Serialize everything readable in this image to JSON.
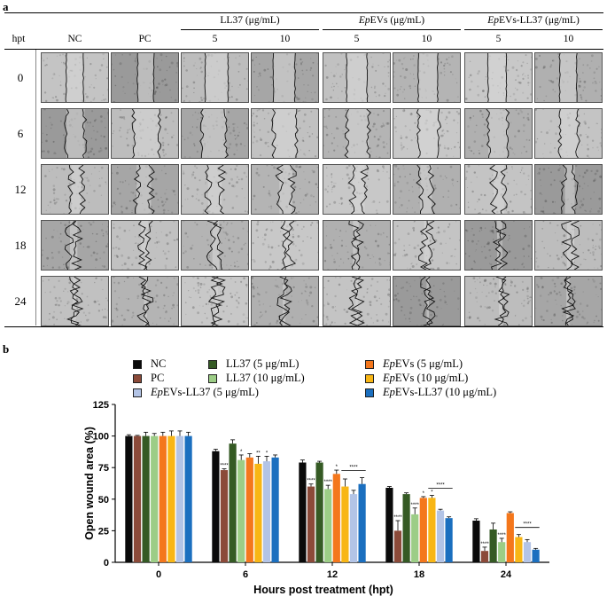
{
  "panel_a": {
    "label": "a",
    "hpt_header": "hpt",
    "col_headers": [
      "NC",
      "PC"
    ],
    "groups": [
      {
        "label": "LL37 (μg/mL)",
        "prefix": "",
        "suffix": "LL37 (μg/mL)",
        "subs": [
          "5",
          "10"
        ]
      },
      {
        "label": "EpEVs (μg/mL)",
        "prefix": "Ep",
        "suffix": "EVs (μg/mL)",
        "subs": [
          "5",
          "10"
        ]
      },
      {
        "label": "EpEVs-LL37 (μg/mL)",
        "prefix": "Ep",
        "suffix": "EVs-LL37 (μg/mL)",
        "subs": [
          "5",
          "10"
        ]
      }
    ],
    "rows": [
      "0",
      "6",
      "12",
      "18",
      "24"
    ]
  },
  "panel_b": {
    "label": "b"
  },
  "colors": {
    "NC": "#0a0a0a",
    "PC": "#8b4a39",
    "LL37_5": "#355a24",
    "LL37_10": "#9ccd86",
    "EpEVs_5": "#f4771c",
    "EpEVs_10": "#f8b615",
    "EpEVsLL37_5": "#b3c4e6",
    "EpEVsLL37_10": "#1b6fbf"
  },
  "legend": [
    {
      "key": "NC",
      "prefix": "",
      "text": "NC"
    },
    {
      "key": "PC",
      "prefix": "",
      "text": "PC"
    },
    {
      "key": "EpEVsLL37_5",
      "prefix": "Ep",
      "text": "EVs-LL37 (5 μg/mL)"
    },
    {
      "key": "LL37_5",
      "prefix": "",
      "text": "LL37 (5 μg/mL)"
    },
    {
      "key": "LL37_10",
      "prefix": "",
      "text": "LL37 (10 μg/mL)"
    },
    {
      "key": "EpEVs_5",
      "prefix": "Ep",
      "text": "EVs (5 μg/mL)"
    },
    {
      "key": "EpEVs_10",
      "prefix": "Ep",
      "text": "EVs (10 μg/mL)"
    },
    {
      "key": "EpEVsLL37_10",
      "prefix": "Ep",
      "text": "EVs-LL37 (10 μg/mL)"
    }
  ],
  "chart_data": {
    "type": "bar",
    "xlabel": "Hours post treatment (hpt)",
    "ylabel": "Open wound area (%)",
    "categories": [
      "0",
      "6",
      "12",
      "18",
      "24"
    ],
    "ylim": [
      0,
      125
    ],
    "yticks": [
      0,
      25,
      50,
      75,
      100,
      125
    ],
    "series": [
      {
        "name": "NC",
        "key": "NC",
        "values": [
          100,
          88,
          79,
          59,
          33
        ],
        "errors": [
          1,
          1.5,
          2,
          1,
          1.5
        ],
        "sig": [
          "",
          "",
          "",
          "",
          ""
        ]
      },
      {
        "name": "PC",
        "key": "PC",
        "values": [
          100,
          73,
          60,
          25,
          9
        ],
        "errors": [
          0.5,
          1,
          2,
          8,
          3
        ],
        "sig": [
          "",
          "****",
          "****",
          "****",
          "****"
        ]
      },
      {
        "name": "LL37 (5 μg/mL)",
        "key": "LL37_5",
        "values": [
          100,
          94,
          79,
          54,
          26
        ],
        "errors": [
          3,
          3,
          1,
          1,
          5
        ],
        "sig": [
          "",
          "",
          "",
          "",
          ""
        ]
      },
      {
        "name": "LL37 (10 μg/mL)",
        "key": "LL37_10",
        "values": [
          100,
          81,
          58,
          38,
          16
        ],
        "errors": [
          2,
          4,
          3,
          5,
          3
        ],
        "sig": [
          "",
          "*",
          "****",
          "****",
          "****"
        ]
      },
      {
        "name": "EpEVs (5 μg/mL)",
        "key": "EpEVs_5",
        "values": [
          100,
          83,
          70,
          51,
          39
        ],
        "errors": [
          3,
          3,
          3,
          1,
          1
        ],
        "sig": [
          "",
          "",
          "*",
          "*",
          ""
        ]
      },
      {
        "name": "EpEVs (10 μg/mL)",
        "key": "EpEVs_10",
        "values": [
          100,
          78,
          60,
          51,
          20
        ],
        "errors": [
          4,
          6,
          6,
          2,
          2
        ],
        "sig": [
          "",
          "**",
          "",
          "*",
          ""
        ]
      },
      {
        "name": "EpEVs-LL37 (5 μg/mL)",
        "key": "EpEVsLL37_5",
        "values": [
          100,
          80,
          54,
          41,
          16
        ],
        "errors": [
          4,
          4,
          3,
          1,
          2
        ],
        "sig": [
          "",
          "*",
          "",
          "",
          ""
        ]
      },
      {
        "name": "EpEVs-LL37 (10 μg/mL)",
        "key": "EpEVsLL37_10",
        "values": [
          100,
          83,
          62,
          35,
          10
        ],
        "errors": [
          3,
          2,
          5,
          1,
          1
        ],
        "sig": [
          "",
          "",
          "",
          "",
          ""
        ]
      }
    ],
    "brackets": [
      {
        "category": 2,
        "label": "****"
      },
      {
        "category": 3,
        "label": "****"
      },
      {
        "category": 4,
        "label": "****"
      }
    ]
  }
}
